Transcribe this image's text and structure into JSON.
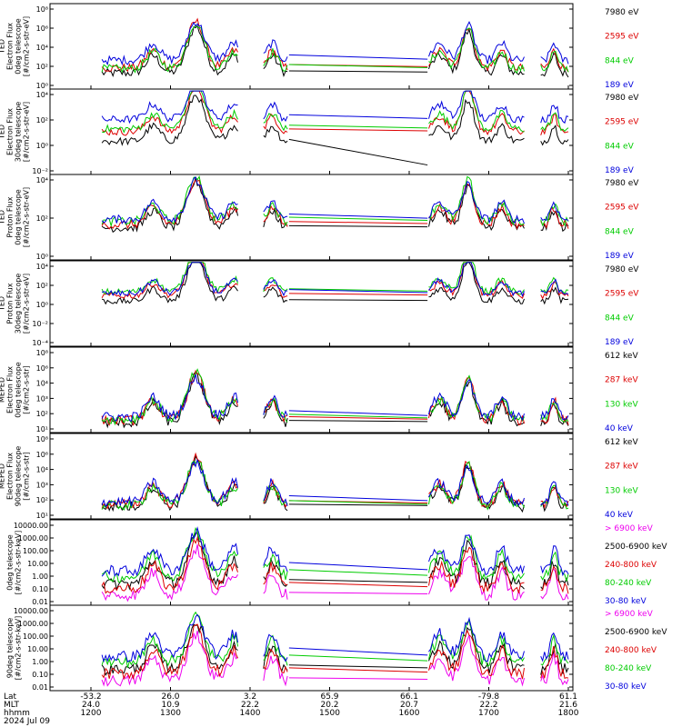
{
  "chart_data": [
    {
      "type": "line",
      "ylabel": [
        "TED",
        "Electron Flux",
        "0deg telescope",
        "[#/cm2-s-str-eV]"
      ],
      "y_ticks": [
        "10⁸",
        "10⁶",
        "10⁴",
        "10²",
        "10⁰"
      ],
      "log": true,
      "ylim_exp": [
        0,
        8
      ],
      "series": [
        {
          "name": "7980 eV",
          "color": "#000000",
          "base": 1.5
        },
        {
          "name": "2595 eV",
          "color": "#dd0000",
          "base": 2.0
        },
        {
          "name": "844 eV",
          "color": "#00cc00",
          "base": 1.9
        },
        {
          "name": "189 eV",
          "color": "#0000dd",
          "base": 2.7
        }
      ]
    },
    {
      "type": "line",
      "ylabel": [
        "TED",
        "Electron Flux",
        "30deg telescope",
        "[#/cm2-s-str-eV]"
      ],
      "y_ticks": [
        "10⁴",
        "10²",
        "10⁰",
        "10⁻²"
      ],
      "log": true,
      "ylim_exp": [
        -3,
        6
      ],
      "series": [
        {
          "name": "7980 eV",
          "color": "#000000",
          "base": 0.5
        },
        {
          "name": "2595 eV",
          "color": "#dd0000",
          "base": 1.5
        },
        {
          "name": "844 eV",
          "color": "#00cc00",
          "base": 1.8
        },
        {
          "name": "189 eV",
          "color": "#0000dd",
          "base": 2.8
        }
      ]
    },
    {
      "type": "line",
      "ylabel": [
        "TED",
        "Proton Flux",
        "0deg telescope",
        "[#/cm2-s-str-eV]"
      ],
      "y_ticks": [
        "10⁴",
        "10²",
        "10⁰"
      ],
      "log": true,
      "ylim_exp": [
        -2,
        6
      ],
      "series": [
        {
          "name": "7980 eV",
          "color": "#000000",
          "base": 1.0
        },
        {
          "name": "2595 eV",
          "color": "#dd0000",
          "base": 1.3
        },
        {
          "name": "844 eV",
          "color": "#00cc00",
          "base": 1.6
        },
        {
          "name": "189 eV",
          "color": "#0000dd",
          "base": 1.8
        }
      ]
    },
    {
      "type": "line",
      "ylabel": [
        "TED",
        "Proton Flux",
        "30deg telescope",
        "[#/cm2-s-str-eV]"
      ],
      "y_ticks": [
        "10⁴",
        "10²",
        "10⁰",
        "10⁻²",
        "10⁻⁴"
      ],
      "log": true,
      "ylim_exp": [
        -5,
        6
      ],
      "series": [
        {
          "name": "7980 eV",
          "color": "#000000",
          "base": 0.8
        },
        {
          "name": "2595 eV",
          "color": "#dd0000",
          "base": 1.5
        },
        {
          "name": "844 eV",
          "color": "#00cc00",
          "base": 2.0
        },
        {
          "name": "189 eV",
          "color": "#0000dd",
          "base": 1.8
        }
      ]
    },
    {
      "type": "line",
      "ylabel": [
        "MEPED",
        "Electron Flux",
        "0deg telescope",
        "[#/cm2-s-str]"
      ],
      "y_ticks": [
        "10⁸",
        "10⁶",
        "10⁴",
        "10³",
        "10²",
        "10¹"
      ],
      "log": true,
      "ylim_exp": [
        1,
        8
      ],
      "series": [
        {
          "name": "612 keV",
          "color": "#000000",
          "base": 1.8
        },
        {
          "name": "287 keV",
          "color": "#dd0000",
          "base": 2.0
        },
        {
          "name": "130 keV",
          "color": "#00cc00",
          "base": 2.1
        },
        {
          "name": "40 keV",
          "color": "#0000dd",
          "base": 2.3
        }
      ]
    },
    {
      "type": "line",
      "ylabel": [
        "MEPED",
        "Electron Flux",
        "90deg telescope",
        "[#/cm2-s-str]"
      ],
      "y_ticks": [
        "10⁸",
        "10⁶",
        "10⁴",
        "10³",
        "10²",
        "10¹"
      ],
      "log": true,
      "ylim_exp": [
        1,
        8
      ],
      "series": [
        {
          "name": "612 keV",
          "color": "#000000",
          "base": 2.0
        },
        {
          "name": "287 keV",
          "color": "#dd0000",
          "base": 2.2
        },
        {
          "name": "130 keV",
          "color": "#00cc00",
          "base": 2.1
        },
        {
          "name": "40 keV",
          "color": "#0000dd",
          "base": 2.4
        }
      ]
    },
    {
      "type": "line",
      "ylabel": [
        "0deg telescope",
        "[#/cm2-s-str-keV]"
      ],
      "y_ticks": [
        "10000.00",
        "1000.00",
        "100.00",
        "10.00",
        "1.00",
        "0.10",
        "0.01"
      ],
      "log": true,
      "ylim_exp": [
        -2,
        4
      ],
      "series": [
        {
          "name": "> 6900 keV",
          "color": "#ee00ee",
          "base": -1.3
        },
        {
          "name": "2500-6900 keV",
          "color": "#000000",
          "base": -0.5
        },
        {
          "name": "240-800 keV",
          "color": "#dd0000",
          "base": -0.8
        },
        {
          "name": "80-240 keV",
          "color": "#00cc00",
          "base": 0.0
        },
        {
          "name": "30-80 keV",
          "color": "#0000dd",
          "base": 0.4
        }
      ]
    },
    {
      "type": "line",
      "ylabel": [
        "90deg telescope",
        "[#/cm2-s-str-keV]"
      ],
      "y_ticks": [
        "10000.00",
        "1000.00",
        "100.00",
        "10.00",
        "1.00",
        "0.10",
        "0.01"
      ],
      "log": true,
      "ylim_exp": [
        -2,
        4
      ],
      "series": [
        {
          "name": "> 6900 keV",
          "color": "#ee00ee",
          "base": -1.3
        },
        {
          "name": "2500-6900 keV",
          "color": "#000000",
          "base": -0.5
        },
        {
          "name": "240-800 keV",
          "color": "#dd0000",
          "base": -0.8
        },
        {
          "name": "80-240 keV",
          "color": "#00cc00",
          "base": 0.0
        },
        {
          "name": "30-80 keV",
          "color": "#0000dd",
          "base": 0.4
        }
      ]
    }
  ],
  "x_axis": {
    "row_labels": [
      "Lat",
      "MLT",
      "hhmm",
      "2024 Jul 09"
    ],
    "ticks": [
      {
        "lat": "-53.2",
        "mlt": "24.0",
        "hhmm": "1200"
      },
      {
        "lat": "26.0",
        "mlt": "10.9",
        "hhmm": "1300"
      },
      {
        "lat": "3.2",
        "mlt": "22.2",
        "hhmm": "1400"
      },
      {
        "lat": "65.9",
        "mlt": "20.2",
        "hhmm": "1500"
      },
      {
        "lat": "66.1",
        "mlt": "20.7",
        "hhmm": "1600"
      },
      {
        "lat": "-79.8",
        "mlt": "22.2",
        "hhmm": "1700"
      },
      {
        "lat": "61.1",
        "mlt": "21.6",
        "hhmm": "1800"
      }
    ]
  }
}
